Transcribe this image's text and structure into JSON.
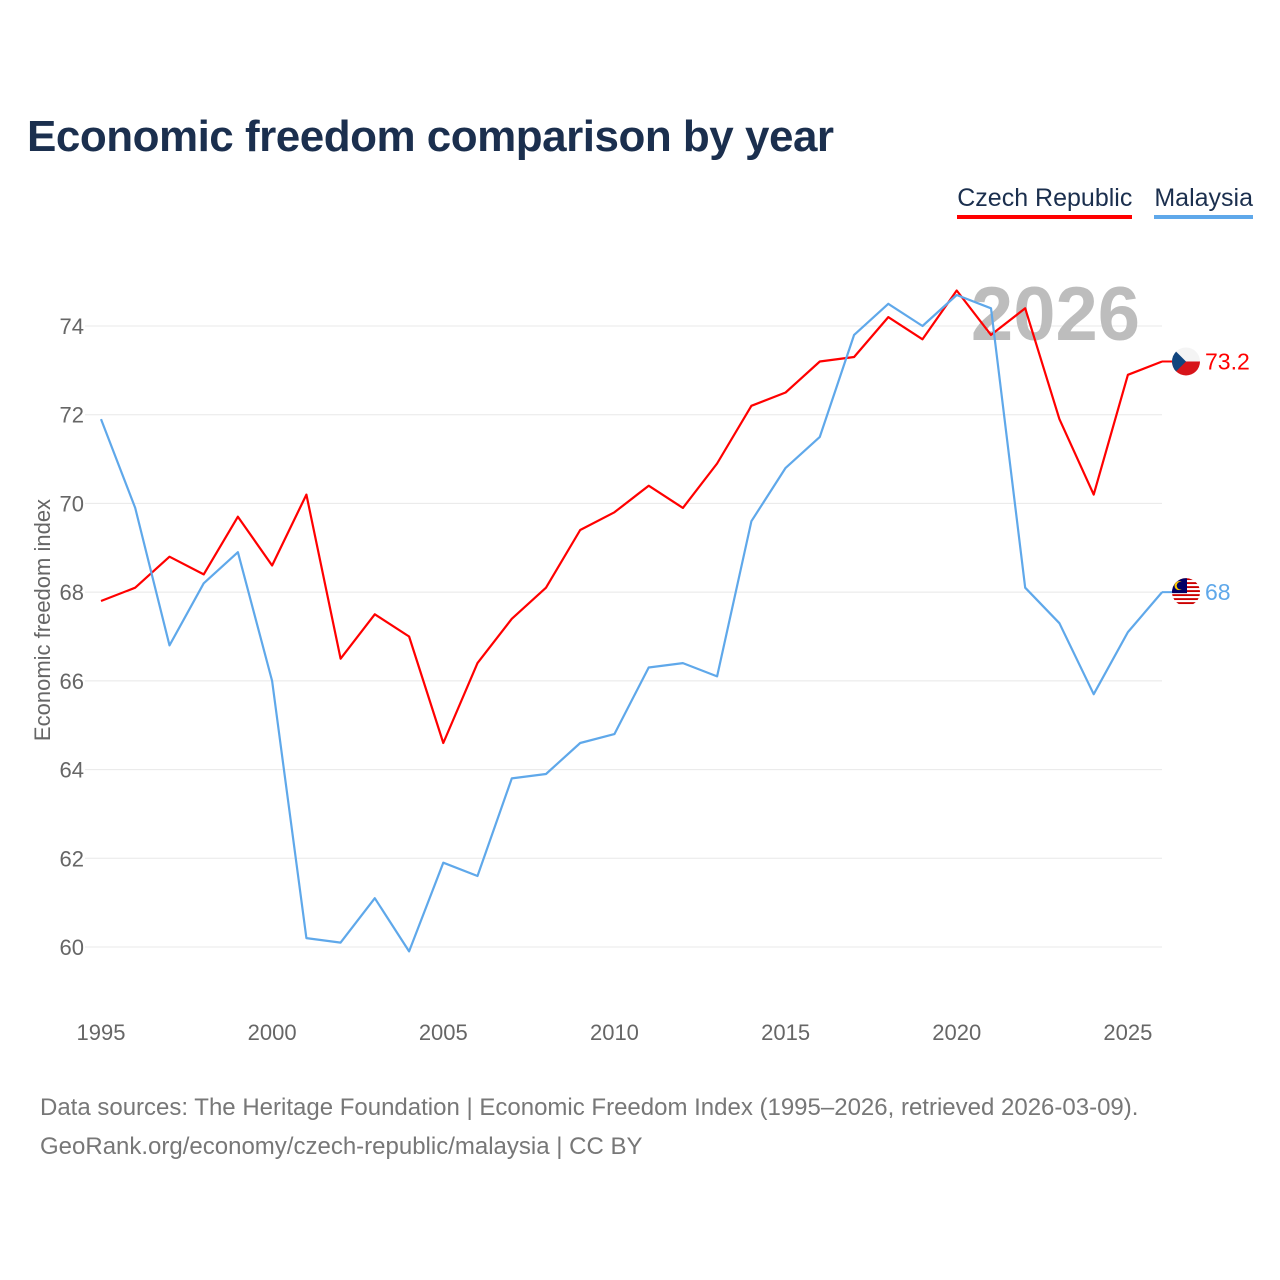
{
  "title": "Economic freedom comparison by year",
  "source_line1": "Data sources: The Heritage Foundation | Economic Freedom Index (1995–2026, retrieved 2026-03-09).",
  "source_line2": "GeoRank.org/economy/czech-republic/malaysia | CC BY",
  "chart_data": {
    "type": "line",
    "title": "Economic freedom comparison by year",
    "xlabel": "",
    "ylabel": "Economic freedom index",
    "watermark_year": "2026",
    "x": [
      1995,
      1996,
      1997,
      1998,
      1999,
      2000,
      2001,
      2002,
      2003,
      2004,
      2005,
      2006,
      2007,
      2008,
      2009,
      2010,
      2011,
      2012,
      2013,
      2014,
      2015,
      2016,
      2017,
      2018,
      2019,
      2020,
      2021,
      2022,
      2023,
      2024,
      2025,
      2026
    ],
    "xticks": [
      1995,
      2000,
      2005,
      2010,
      2015,
      2020,
      2025
    ],
    "yticks": [
      60,
      62,
      64,
      66,
      68,
      70,
      72,
      74
    ],
    "xlim": [
      1995,
      2026
    ],
    "grid": true,
    "legend": "top-right",
    "series": [
      {
        "name": "Czech Republic",
        "color": "#ff0000",
        "end_label": "73.2",
        "flag": "czech-flag",
        "values": [
          67.8,
          68.1,
          68.8,
          68.4,
          69.7,
          68.6,
          70.2,
          66.5,
          67.5,
          67.0,
          64.6,
          66.4,
          67.4,
          68.1,
          69.4,
          69.8,
          70.4,
          69.9,
          70.9,
          72.2,
          72.5,
          73.2,
          73.3,
          74.2,
          73.7,
          74.8,
          73.8,
          74.4,
          71.9,
          70.2,
          72.9,
          73.2
        ]
      },
      {
        "name": "Malaysia",
        "color": "#5fa8ea",
        "end_label": "68",
        "flag": "malaysia-flag",
        "values": [
          71.9,
          69.9,
          66.8,
          68.2,
          68.9,
          66.0,
          60.2,
          60.1,
          61.1,
          59.9,
          61.9,
          61.6,
          63.8,
          63.9,
          64.6,
          64.8,
          66.3,
          66.4,
          66.1,
          69.6,
          70.8,
          71.5,
          73.8,
          74.5,
          74.0,
          74.7,
          74.4,
          68.1,
          67.3,
          65.7,
          67.1,
          68.0
        ]
      }
    ]
  }
}
